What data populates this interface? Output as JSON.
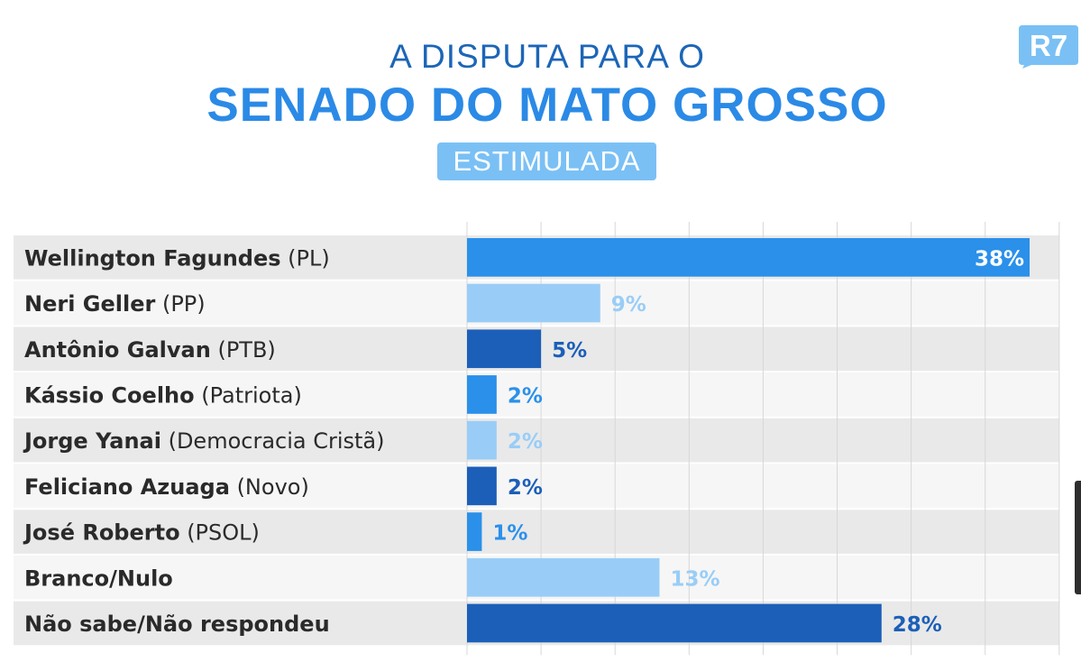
{
  "header": {
    "title_line1": "A DISPUTA PARA O",
    "title_line2": "SENADO DO MATO GROSSO",
    "subtitle": "ESTIMULADA"
  },
  "logo": {
    "text": "R7",
    "color": "#7ac0f5"
  },
  "colors": {
    "bright_blue": "#2a90ea",
    "light_blue": "#99cdf7",
    "dark_blue": "#1c5fb8",
    "row_shade": "#e9e9e9"
  },
  "chart_data": {
    "type": "bar",
    "orientation": "horizontal",
    "unit": "%",
    "xlim": [
      0,
      40
    ],
    "categories": [
      {
        "name": "Wellington Fagundes",
        "party": "(PL)"
      },
      {
        "name": "Neri Geller",
        "party": "(PP)"
      },
      {
        "name": "Antônio Galvan",
        "party": "(PTB)"
      },
      {
        "name": "Kássio Coelho",
        "party": "(Patriota)"
      },
      {
        "name": "Jorge Yanai",
        "party": "(Democracia Cristã)"
      },
      {
        "name": "Feliciano Azuaga",
        "party": "(Novo)"
      },
      {
        "name": "José Roberto",
        "party": "(PSOL)"
      },
      {
        "name": "Branco/Nulo",
        "party": ""
      },
      {
        "name": "Não sabe/Não respondeu",
        "party": ""
      }
    ],
    "values": [
      38,
      9,
      5,
      2,
      2,
      2,
      1,
      13,
      28
    ],
    "value_labels": [
      "38%",
      "9%",
      "5%",
      "2%",
      "2%",
      "2%",
      "1%",
      "13%",
      "28%"
    ],
    "bar_colors": [
      "#2a90ea",
      "#99cdf7",
      "#1c5fb8",
      "#2a90ea",
      "#99cdf7",
      "#1c5fb8",
      "#2a90ea",
      "#99cdf7",
      "#1c5fb8"
    ],
    "grid": true,
    "alternating_row_shading": true
  }
}
